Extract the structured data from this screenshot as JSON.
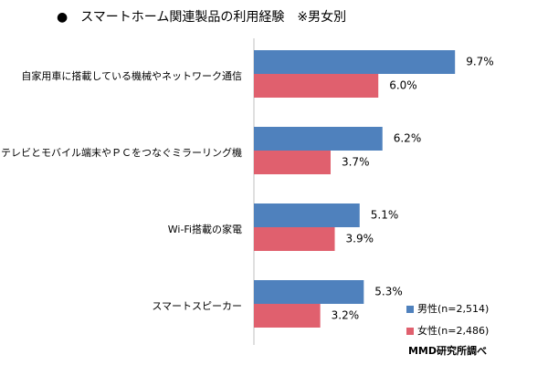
{
  "chart_data": {
    "type": "bar",
    "orientation": "horizontal",
    "title": "●　スマートホーム関連製品の利用経験　※男女別",
    "categories": [
      "自家用車に搭載している機械やネットワーク通信",
      "テレビとモバイル端末やＰＣをつなぐミラーリング機",
      "Wi-Fi搭載の家電",
      "スマートスピーカー"
    ],
    "series": [
      {
        "name": "男性(n=2,514)",
        "values": [
          9.7,
          6.2,
          5.1,
          5.3
        ],
        "labels": [
          "9.7%",
          "6.2%",
          "5.1%",
          "5.3%"
        ],
        "color": "#4f81bd"
      },
      {
        "name": "女性(n=2,486)",
        "values": [
          6.0,
          3.7,
          3.9,
          3.2
        ],
        "labels": [
          "6.0%",
          "3.7%",
          "3.9%",
          "3.2%"
        ],
        "color": "#e0606e"
      }
    ],
    "xlim": [
      0,
      10
    ],
    "grid": false,
    "legend_position": "bottom-right",
    "source": "MMD研究所調べ"
  }
}
